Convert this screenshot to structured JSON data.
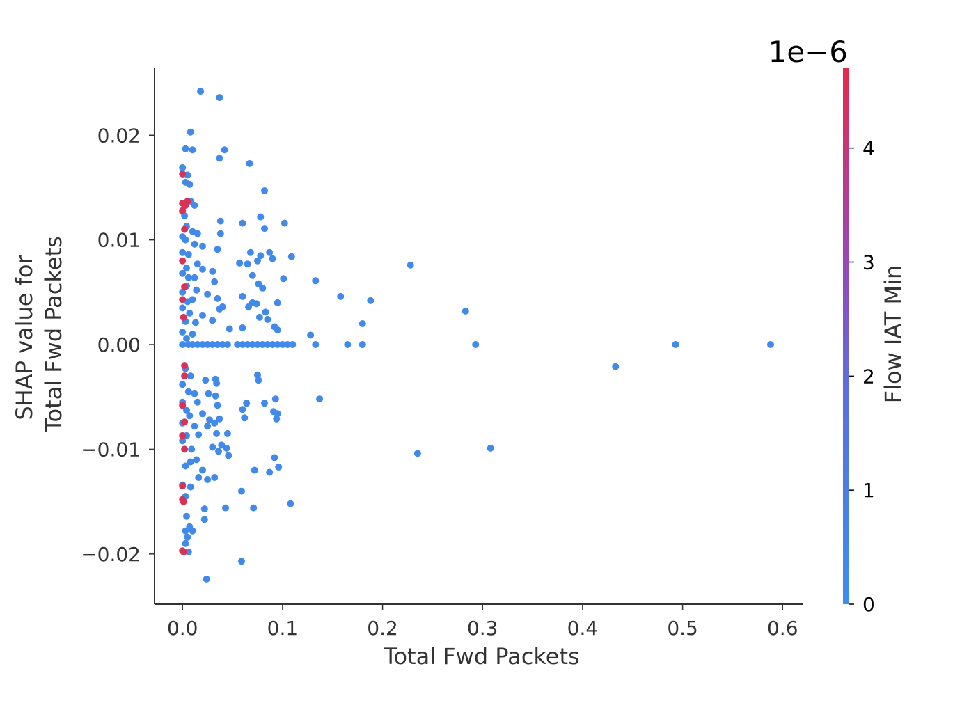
{
  "chart_data": {
    "type": "scatter",
    "title": "",
    "xlabel": "Total Fwd Packets",
    "ylabel_lines": [
      "SHAP value for",
      "Total Fwd Packets"
    ],
    "xlim": [
      -0.028,
      0.62
    ],
    "ylim": [
      -0.0248,
      0.0264
    ],
    "x_ticks": [
      0.0,
      0.1,
      0.2,
      0.3,
      0.4,
      0.5,
      0.6
    ],
    "x_tick_labels": [
      "0.0",
      "0.1",
      "0.2",
      "0.3",
      "0.4",
      "0.5",
      "0.6"
    ],
    "y_ticks": [
      0.02,
      0.01,
      0.0,
      -0.01,
      -0.02
    ],
    "y_tick_labels": [
      "0.02",
      "0.01",
      "0.00",
      "−0.01",
      "−0.02"
    ],
    "grid": false,
    "colorbar": {
      "label": "Flow IAT Min",
      "exponent_label": "1e−6",
      "range": [
        0,
        4.7
      ],
      "ticks": [
        0,
        1,
        2,
        3,
        4
      ],
      "tick_labels": [
        "0",
        "1",
        "2",
        "3",
        "4"
      ],
      "color_low": "#3a8ef0",
      "color_high": "#e8294a"
    },
    "series": [
      {
        "color_value": 0.2,
        "points": [
          [
            0.018,
            0.0242
          ],
          [
            0.037,
            0.0236
          ],
          [
            0.008,
            0.0203
          ],
          [
            0.003,
            0.0187
          ],
          [
            0.01,
            0.0186
          ],
          [
            0.042,
            0.0186
          ],
          [
            0.037,
            0.0178
          ],
          [
            0.067,
            0.0173
          ],
          [
            0.0,
            0.0169
          ],
          [
            0.005,
            0.0162
          ],
          [
            0.003,
            0.0155
          ],
          [
            0.007,
            0.0153
          ],
          [
            0.082,
            0.0147
          ],
          [
            0.008,
            0.0137
          ],
          [
            0.012,
            0.0133
          ],
          [
            0.0,
            0.0127
          ],
          [
            0.002,
            0.0123
          ],
          [
            0.078,
            0.0122
          ],
          [
            0.038,
            0.0118
          ],
          [
            0.06,
            0.0116
          ],
          [
            0.102,
            0.0116
          ],
          [
            0.004,
            0.0113
          ],
          [
            0.082,
            0.0111
          ],
          [
            0.01,
            0.0108
          ],
          [
            0.015,
            0.0106
          ],
          [
            0.038,
            0.0106
          ],
          [
            0.0,
            0.0103
          ],
          [
            0.003,
            0.01
          ],
          [
            0.012,
            0.0096
          ],
          [
            0.02,
            0.0094
          ],
          [
            0.035,
            0.0091
          ],
          [
            0.068,
            0.0088
          ],
          [
            0.087,
            0.0088
          ],
          [
            0.0,
            0.0088
          ],
          [
            0.006,
            0.0086
          ],
          [
            0.078,
            0.0085
          ],
          [
            0.109,
            0.0084
          ],
          [
            0.09,
            0.0082
          ],
          [
            0.075,
            0.008
          ],
          [
            0.057,
            0.0078
          ],
          [
            0.065,
            0.0077
          ],
          [
            0.015,
            0.0077
          ],
          [
            0.228,
            0.0076
          ],
          [
            0.004,
            0.0073
          ],
          [
            0.02,
            0.0072
          ],
          [
            0.03,
            0.007
          ],
          [
            0.0,
            0.0068
          ],
          [
            0.07,
            0.0066
          ],
          [
            0.006,
            0.0064
          ],
          [
            0.012,
            0.0064
          ],
          [
            0.101,
            0.0063
          ],
          [
            0.133,
            0.0061
          ],
          [
            0.032,
            0.006
          ],
          [
            0.076,
            0.0058
          ],
          [
            0.004,
            0.0056
          ],
          [
            0.08,
            0.0054
          ],
          [
            0.014,
            0.0052
          ],
          [
            0.0,
            0.005
          ],
          [
            0.025,
            0.0048
          ],
          [
            0.06,
            0.0046
          ],
          [
            0.158,
            0.0046
          ],
          [
            0.035,
            0.0044
          ],
          [
            0.01,
            0.0043
          ],
          [
            0.188,
            0.0042
          ],
          [
            0.005,
            0.0041
          ],
          [
            0.07,
            0.004
          ],
          [
            0.095,
            0.004
          ],
          [
            0.074,
            0.0039
          ],
          [
            0.04,
            0.0036
          ],
          [
            0.066,
            0.0036
          ],
          [
            0.0,
            0.0035
          ],
          [
            0.283,
            0.0032
          ],
          [
            0.083,
            0.0031
          ],
          [
            0.037,
            0.0034
          ],
          [
            0.007,
            0.003
          ],
          [
            0.02,
            0.0028
          ],
          [
            0.077,
            0.0026
          ],
          [
            0.085,
            0.0024
          ],
          [
            0.03,
            0.0023
          ],
          [
            0.003,
            0.0022
          ],
          [
            0.013,
            0.0021
          ],
          [
            0.18,
            0.002
          ],
          [
            0.092,
            0.0017
          ],
          [
            0.06,
            0.0016
          ],
          [
            0.047,
            0.0015
          ],
          [
            0.095,
            0.0014
          ],
          [
            0.0,
            0.0012
          ],
          [
            0.128,
            0.0009
          ],
          [
            0.01,
            0.001
          ],
          [
            0.004,
            0.0006
          ],
          [
            0.0,
            0.0
          ],
          [
            0.006,
            0.0
          ],
          [
            0.01,
            0.0
          ],
          [
            0.015,
            0.0
          ],
          [
            0.02,
            0.0
          ],
          [
            0.025,
            0.0
          ],
          [
            0.03,
            0.0
          ],
          [
            0.035,
            0.0
          ],
          [
            0.04,
            0.0
          ],
          [
            0.045,
            0.0
          ],
          [
            0.055,
            0.0
          ],
          [
            0.06,
            0.0
          ],
          [
            0.065,
            0.0
          ],
          [
            0.07,
            0.0
          ],
          [
            0.075,
            0.0
          ],
          [
            0.08,
            0.0
          ],
          [
            0.085,
            0.0
          ],
          [
            0.09,
            0.0
          ],
          [
            0.095,
            0.0
          ],
          [
            0.1,
            0.0
          ],
          [
            0.105,
            0.0
          ],
          [
            0.11,
            0.0
          ],
          [
            0.133,
            0.0
          ],
          [
            0.165,
            0.0
          ],
          [
            0.18,
            0.0
          ],
          [
            0.293,
            0.0
          ],
          [
            0.493,
            0.0
          ],
          [
            0.588,
            0.0
          ],
          [
            0.433,
            -0.0021
          ],
          [
            0.003,
            -0.0023
          ],
          [
            0.008,
            -0.003
          ],
          [
            0.075,
            -0.0029
          ],
          [
            0.076,
            -0.0034
          ],
          [
            0.023,
            -0.0034
          ],
          [
            0.033,
            -0.0033
          ],
          [
            0.0,
            -0.0038
          ],
          [
            0.034,
            -0.0037
          ],
          [
            0.006,
            -0.0045
          ],
          [
            0.012,
            -0.0047
          ],
          [
            0.026,
            -0.0047
          ],
          [
            0.033,
            -0.0049
          ],
          [
            0.137,
            -0.0052
          ],
          [
            0.093,
            -0.0052
          ],
          [
            0.0,
            -0.0055
          ],
          [
            0.015,
            -0.0055
          ],
          [
            0.082,
            -0.0056
          ],
          [
            0.064,
            -0.0056
          ],
          [
            0.035,
            -0.0058
          ],
          [
            0.06,
            -0.0062
          ],
          [
            0.004,
            -0.0063
          ],
          [
            0.091,
            -0.0064
          ],
          [
            0.02,
            -0.0066
          ],
          [
            0.095,
            -0.0066
          ],
          [
            0.007,
            -0.0068
          ],
          [
            0.062,
            -0.007
          ],
          [
            0.027,
            -0.0072
          ],
          [
            0.037,
            -0.0071
          ],
          [
            0.094,
            -0.0071
          ],
          [
            0.0,
            -0.0075
          ],
          [
            0.032,
            -0.0075
          ],
          [
            0.012,
            -0.0078
          ],
          [
            0.025,
            -0.0078
          ],
          [
            0.045,
            -0.0085
          ],
          [
            0.034,
            -0.0085
          ],
          [
            0.004,
            -0.0087
          ],
          [
            0.016,
            -0.0086
          ],
          [
            0.0,
            -0.0092
          ],
          [
            0.039,
            -0.0096
          ],
          [
            0.03,
            -0.0098
          ],
          [
            0.044,
            -0.0099
          ],
          [
            0.308,
            -0.0099
          ],
          [
            0.009,
            -0.01
          ],
          [
            0.036,
            -0.0102
          ],
          [
            0.235,
            -0.0104
          ],
          [
            0.046,
            -0.0106
          ],
          [
            0.092,
            -0.0108
          ],
          [
            0.014,
            -0.011
          ],
          [
            0.008,
            -0.0112
          ],
          [
            0.096,
            -0.0117
          ],
          [
            0.003,
            -0.0116
          ],
          [
            0.072,
            -0.012
          ],
          [
            0.087,
            -0.0122
          ],
          [
            0.02,
            -0.012
          ],
          [
            0.016,
            -0.0127
          ],
          [
            0.032,
            -0.0127
          ],
          [
            0.025,
            -0.0129
          ],
          [
            0.0,
            -0.0134
          ],
          [
            0.008,
            -0.0136
          ],
          [
            0.059,
            -0.014
          ],
          [
            0.003,
            -0.0145
          ],
          [
            0.108,
            -0.0152
          ],
          [
            0.043,
            -0.0156
          ],
          [
            0.071,
            -0.0156
          ],
          [
            0.022,
            -0.0157
          ],
          [
            0.004,
            -0.0164
          ],
          [
            0.022,
            -0.0167
          ],
          [
            0.007,
            -0.0174
          ],
          [
            0.003,
            -0.0178
          ],
          [
            0.01,
            -0.0178
          ],
          [
            0.005,
            -0.0184
          ],
          [
            0.003,
            -0.019
          ],
          [
            0.006,
            -0.0198
          ],
          [
            0.059,
            -0.0207
          ],
          [
            0.024,
            -0.0224
          ]
        ]
      },
      {
        "color_value": 4.3,
        "points": [
          [
            0.0,
            0.0163
          ],
          [
            0.005,
            0.0137
          ],
          [
            0.003,
            0.0133
          ],
          [
            0.0,
            0.0135
          ],
          [
            0.0,
            0.0128
          ],
          [
            0.002,
            0.011
          ],
          [
            0.0,
            0.008
          ],
          [
            0.002,
            0.0055
          ],
          [
            0.0,
            0.0043
          ],
          [
            0.001,
            0.0026
          ],
          [
            0.002,
            -0.002
          ],
          [
            0.002,
            -0.003
          ],
          [
            0.0,
            -0.0058
          ],
          [
            0.002,
            -0.0074
          ],
          [
            0.0,
            -0.0087
          ],
          [
            0.002,
            -0.01
          ],
          [
            0.0,
            -0.0135
          ],
          [
            0.0,
            -0.0148
          ],
          [
            0.001,
            -0.015
          ],
          [
            0.0,
            -0.0197
          ],
          [
            0.001,
            -0.0198
          ]
        ]
      }
    ]
  }
}
